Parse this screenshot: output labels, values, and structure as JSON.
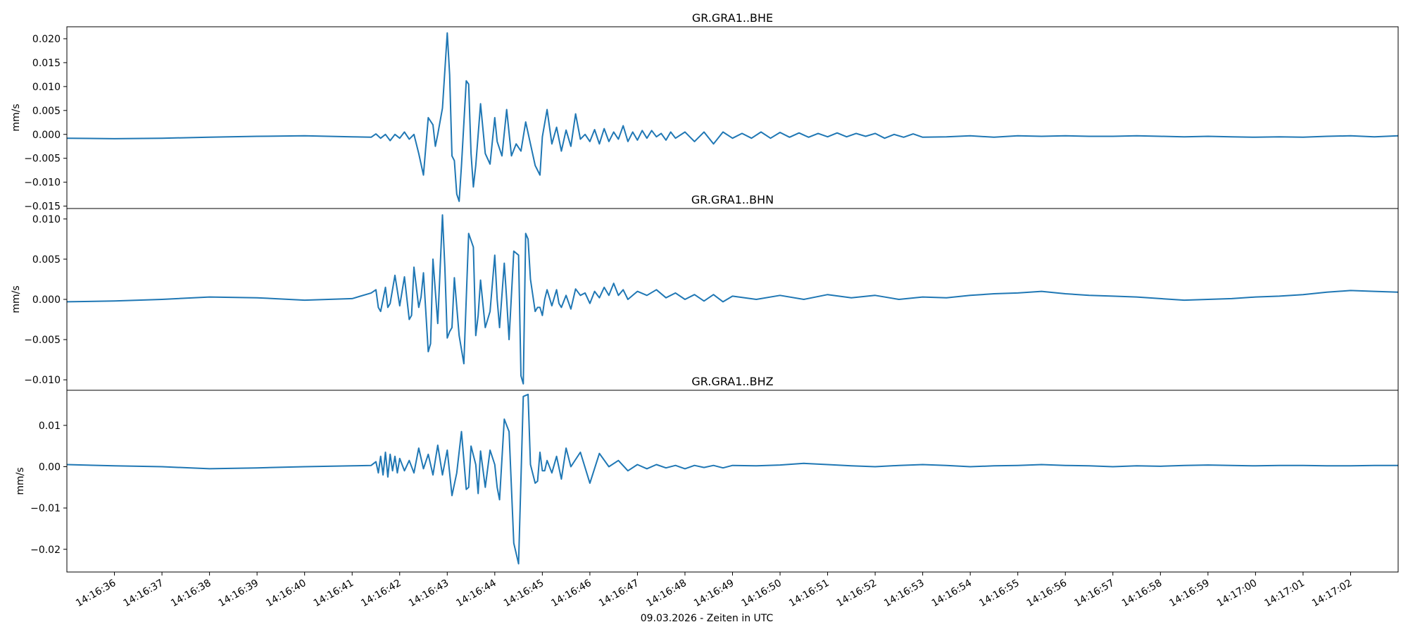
{
  "chart_data": {
    "type": "line",
    "xlabel": "09.03.2026 - Zeiten in UTC",
    "x_range_seconds": [
      35.0,
      63.0
    ],
    "x_ticks": [
      "14:16:36",
      "14:16:37",
      "14:16:38",
      "14:16:39",
      "14:16:40",
      "14:16:41",
      "14:16:42",
      "14:16:43",
      "14:16:44",
      "14:16:45",
      "14:16:46",
      "14:16:47",
      "14:16:48",
      "14:16:49",
      "14:16:50",
      "14:16:51",
      "14:16:52",
      "14:16:53",
      "14:16:54",
      "14:16:55",
      "14:16:56",
      "14:16:57",
      "14:16:58",
      "14:16:59",
      "14:17:00",
      "14:17:01",
      "14:17:02"
    ],
    "line_color": "#1f77b4",
    "grid": false,
    "panels": [
      {
        "title": "GR.GRA1..BHE",
        "ylabel": "mm/s",
        "ylim": [
          -0.0155,
          0.0225
        ],
        "yticks": [
          -0.015,
          -0.01,
          -0.005,
          0.0,
          0.005,
          0.01,
          0.015,
          0.02
        ],
        "ytick_labels": [
          "−0.015",
          "−0.010",
          "−0.005",
          "0.000",
          "0.005",
          "0.010",
          "0.015",
          "0.020"
        ],
        "x": [
          35.0,
          36.0,
          37.0,
          38.0,
          39.0,
          40.0,
          41.0,
          41.4,
          41.5,
          41.6,
          41.7,
          41.8,
          41.9,
          42.0,
          42.1,
          42.2,
          42.3,
          42.4,
          42.5,
          42.6,
          42.7,
          42.75,
          42.8,
          42.9,
          43.0,
          43.05,
          43.1,
          43.15,
          43.2,
          43.25,
          43.3,
          43.4,
          43.45,
          43.5,
          43.55,
          43.6,
          43.7,
          43.8,
          43.9,
          44.0,
          44.05,
          44.15,
          44.25,
          44.35,
          44.45,
          44.55,
          44.65,
          44.75,
          44.85,
          44.95,
          45.0,
          45.1,
          45.2,
          45.3,
          45.4,
          45.5,
          45.6,
          45.7,
          45.8,
          45.9,
          46.0,
          46.1,
          46.2,
          46.3,
          46.4,
          46.5,
          46.6,
          46.7,
          46.8,
          46.9,
          47.0,
          47.1,
          47.2,
          47.3,
          47.4,
          47.5,
          47.6,
          47.7,
          47.8,
          48.0,
          48.2,
          48.4,
          48.6,
          48.8,
          49.0,
          49.2,
          49.4,
          49.6,
          49.8,
          50.0,
          50.2,
          50.4,
          50.6,
          50.8,
          51.0,
          51.2,
          51.4,
          51.6,
          51.8,
          52.0,
          52.2,
          52.4,
          52.6,
          52.8,
          53.0,
          53.5,
          54.0,
          54.5,
          55.0,
          55.5,
          56.0,
          56.5,
          57.0,
          57.5,
          58.0,
          58.5,
          59.0,
          59.5,
          60.0,
          60.5,
          61.0,
          61.5,
          62.0,
          62.5,
          63.0
        ],
        "values": [
          -0.0008,
          -0.0009,
          -0.0008,
          -0.0006,
          -0.0004,
          -0.0003,
          -0.0005,
          -0.0006,
          0.0001,
          -0.0008,
          0.0,
          -0.0013,
          0.0,
          -0.0008,
          0.0005,
          -0.001,
          0.0,
          -0.004,
          -0.0085,
          0.0035,
          0.002,
          -0.0025,
          0.0,
          0.0055,
          0.0212,
          0.0125,
          -0.0045,
          -0.0055,
          -0.0125,
          -0.014,
          -0.0065,
          0.0112,
          0.0105,
          -0.004,
          -0.011,
          -0.0065,
          0.0064,
          -0.004,
          -0.0062,
          0.0035,
          -0.0015,
          -0.0045,
          0.0052,
          -0.0045,
          -0.002,
          -0.0035,
          0.0026,
          -0.002,
          -0.0065,
          -0.0085,
          -0.0005,
          0.0052,
          -0.002,
          0.0015,
          -0.0035,
          0.0009,
          -0.0025,
          0.0043,
          -0.001,
          0.0,
          -0.0015,
          0.001,
          -0.002,
          0.0012,
          -0.0015,
          0.0005,
          -0.001,
          0.0018,
          -0.0015,
          0.0005,
          -0.0012,
          0.0008,
          -0.0008,
          0.0008,
          -0.0005,
          0.0002,
          -0.0012,
          0.0005,
          -0.0008,
          0.0005,
          -0.0015,
          0.0005,
          -0.002,
          0.0005,
          -0.0008,
          0.0002,
          -0.0008,
          0.0005,
          -0.0008,
          0.0004,
          -0.0006,
          0.0003,
          -0.0006,
          0.0002,
          -0.0005,
          0.0003,
          -0.0005,
          0.0002,
          -0.0004,
          0.0002,
          -0.0008,
          0.0,
          -0.0006,
          0.0001,
          -0.0006,
          -0.0005,
          -0.0003,
          -0.0006,
          -0.0003,
          -0.0004,
          -0.0003,
          -0.0004,
          -0.0004,
          -0.0003,
          -0.0004,
          -0.0005,
          -0.0004,
          -0.0005,
          -0.0006,
          -0.0005,
          -0.0006,
          -0.0004,
          -0.0003,
          -0.0005,
          -0.0003
        ]
      },
      {
        "title": "GR.GRA1..BHN",
        "ylabel": "mm/s",
        "ylim": [
          -0.0113,
          0.0113
        ],
        "yticks": [
          -0.01,
          -0.005,
          0.0,
          0.005,
          0.01
        ],
        "ytick_labels": [
          "−0.010",
          "−0.005",
          "0.000",
          "0.005",
          "0.010"
        ],
        "x": [
          35.0,
          36.0,
          37.0,
          38.0,
          39.0,
          40.0,
          41.0,
          41.4,
          41.5,
          41.55,
          41.6,
          41.7,
          41.75,
          41.8,
          41.9,
          42.0,
          42.1,
          42.2,
          42.25,
          42.3,
          42.4,
          42.45,
          42.5,
          42.6,
          42.65,
          42.7,
          42.8,
          42.9,
          42.95,
          43.0,
          43.05,
          43.1,
          43.15,
          43.25,
          43.35,
          43.45,
          43.55,
          43.6,
          43.65,
          43.7,
          43.8,
          43.9,
          44.0,
          44.05,
          44.1,
          44.2,
          44.25,
          44.3,
          44.4,
          44.5,
          44.55,
          44.6,
          44.65,
          44.7,
          44.75,
          44.85,
          44.9,
          44.95,
          45.0,
          45.05,
          45.1,
          45.15,
          45.2,
          45.3,
          45.35,
          45.4,
          45.5,
          45.6,
          45.7,
          45.8,
          45.9,
          46.0,
          46.1,
          46.2,
          46.3,
          46.4,
          46.5,
          46.6,
          46.7,
          46.8,
          47.0,
          47.2,
          47.4,
          47.6,
          47.8,
          48.0,
          48.2,
          48.4,
          48.6,
          48.8,
          49.0,
          49.5,
          50.0,
          50.5,
          51.0,
          51.5,
          52.0,
          52.5,
          53.0,
          53.5,
          54.0,
          54.5,
          55.0,
          55.5,
          56.0,
          56.5,
          57.0,
          57.5,
          58.0,
          58.5,
          59.0,
          59.5,
          60.0,
          60.5,
          61.0,
          61.5,
          62.0,
          62.5,
          63.0
        ],
        "values": [
          -0.0003,
          -0.0002,
          0.0,
          0.0003,
          0.0002,
          -0.0001,
          0.0001,
          0.0008,
          0.0012,
          -0.001,
          -0.0015,
          0.0015,
          -0.001,
          -0.0005,
          0.003,
          -0.0008,
          0.0028,
          -0.0025,
          -0.002,
          0.004,
          -0.001,
          0.0003,
          0.0033,
          -0.0065,
          -0.0055,
          0.005,
          -0.003,
          0.0105,
          0.004,
          -0.0048,
          -0.004,
          -0.0035,
          0.0027,
          -0.0045,
          -0.008,
          0.0082,
          0.0065,
          -0.0045,
          -0.002,
          0.0024,
          -0.0035,
          -0.0015,
          0.0055,
          0.0,
          -0.0035,
          0.0045,
          0.0,
          -0.005,
          0.006,
          0.0055,
          -0.0095,
          -0.0105,
          0.0082,
          0.0075,
          0.0025,
          -0.0015,
          -0.001,
          -0.001,
          -0.002,
          0.0,
          0.0012,
          0.0002,
          -0.0008,
          0.0012,
          -0.0005,
          -0.001,
          0.0005,
          -0.0012,
          0.0013,
          0.0005,
          0.0008,
          -0.0005,
          0.001,
          0.0002,
          0.0015,
          0.0005,
          0.002,
          0.0005,
          0.0012,
          0.0,
          0.001,
          0.0005,
          0.0012,
          0.0002,
          0.0008,
          0.0,
          0.0006,
          -0.0002,
          0.0006,
          -0.0003,
          0.0004,
          0.0,
          0.0005,
          0.0,
          0.0006,
          0.0002,
          0.0005,
          0.0,
          0.0003,
          0.0002,
          0.0005,
          0.0007,
          0.0008,
          0.001,
          0.0007,
          0.0005,
          0.0004,
          0.0003,
          0.0001,
          -0.0001,
          0.0,
          0.0001,
          0.0003,
          0.0004,
          0.0006,
          0.0009,
          0.0011,
          0.001,
          0.0009
        ]
      },
      {
        "title": "GR.GRA1..BHZ",
        "ylabel": "mm/s",
        "ylim": [
          -0.0255,
          0.0185
        ],
        "yticks": [
          -0.02,
          -0.01,
          0.0,
          0.01
        ],
        "ytick_labels": [
          "−0.02",
          "−0.01",
          "0.00",
          "0.01"
        ],
        "x": [
          35.0,
          36.0,
          37.0,
          38.0,
          39.0,
          40.0,
          41.0,
          41.4,
          41.5,
          41.55,
          41.6,
          41.65,
          41.7,
          41.75,
          41.8,
          41.85,
          41.9,
          41.95,
          42.0,
          42.1,
          42.2,
          42.3,
          42.4,
          42.5,
          42.6,
          42.7,
          42.8,
          42.9,
          43.0,
          43.05,
          43.1,
          43.2,
          43.3,
          43.4,
          43.45,
          43.5,
          43.6,
          43.65,
          43.7,
          43.8,
          43.9,
          44.0,
          44.05,
          44.1,
          44.2,
          44.3,
          44.4,
          44.5,
          44.6,
          44.7,
          44.75,
          44.85,
          44.9,
          44.95,
          45.0,
          45.05,
          45.1,
          45.2,
          45.3,
          45.4,
          45.5,
          45.6,
          45.8,
          46.0,
          46.2,
          46.4,
          46.6,
          46.8,
          47.0,
          47.2,
          47.4,
          47.6,
          47.8,
          48.0,
          48.2,
          48.4,
          48.6,
          48.8,
          49.0,
          49.5,
          50.0,
          50.5,
          51.0,
          51.5,
          52.0,
          52.5,
          53.0,
          53.5,
          54.0,
          54.5,
          55.0,
          55.5,
          56.0,
          56.5,
          57.0,
          57.5,
          58.0,
          58.5,
          59.0,
          59.5,
          60.0,
          60.5,
          61.0,
          61.5,
          62.0,
          62.5,
          63.0
        ],
        "values": [
          0.0005,
          0.0002,
          0.0,
          -0.0005,
          -0.0003,
          0.0,
          0.0002,
          0.0003,
          0.0012,
          -0.0015,
          0.0025,
          -0.002,
          0.0035,
          -0.0025,
          0.003,
          -0.001,
          0.0025,
          -0.0015,
          0.002,
          -0.001,
          0.0015,
          -0.0015,
          0.0045,
          -0.0005,
          0.003,
          -0.002,
          0.0052,
          -0.002,
          0.004,
          -0.0015,
          -0.007,
          -0.0015,
          0.0085,
          -0.0055,
          -0.005,
          0.005,
          0.0005,
          -0.0065,
          0.0038,
          -0.005,
          0.004,
          0.0005,
          -0.005,
          -0.008,
          0.0115,
          0.0085,
          -0.0185,
          -0.0235,
          0.017,
          0.0175,
          0.0005,
          -0.004,
          -0.0035,
          0.0035,
          -0.001,
          -0.001,
          0.0015,
          -0.0015,
          0.0025,
          -0.003,
          0.0045,
          0.0,
          0.0035,
          -0.004,
          0.0032,
          0.0,
          0.0015,
          -0.001,
          0.0005,
          -0.0005,
          0.0005,
          -0.0003,
          0.0003,
          -0.0005,
          0.0003,
          -0.0002,
          0.0003,
          -0.0003,
          0.0003,
          0.0002,
          0.0004,
          0.0008,
          0.0005,
          0.0002,
          0.0,
          0.0003,
          0.0005,
          0.0003,
          0.0,
          0.0002,
          0.0003,
          0.0005,
          0.0003,
          0.0002,
          0.0,
          0.0002,
          0.0001,
          0.0003,
          0.0004,
          0.0003,
          0.0002,
          0.0003,
          0.0003,
          0.0002,
          0.0002,
          0.0003,
          0.0003
        ]
      }
    ]
  }
}
